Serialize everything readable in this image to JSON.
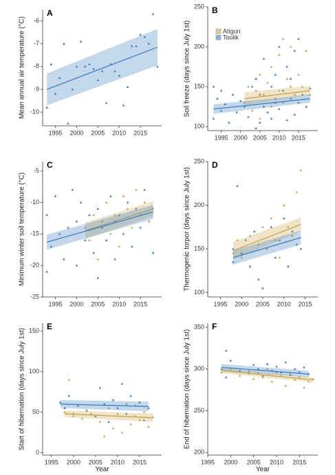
{
  "chart_data": [
    {
      "type": "scatter",
      "title": "A",
      "y_label": "Mean annual air temperature (°C)",
      "xlim": [
        1992,
        2020
      ],
      "xticks": [
        1995,
        2000,
        2005,
        2010,
        2015
      ],
      "ylim": [
        -10.6,
        -5.5
      ],
      "yticks": [
        -10,
        -9,
        -8,
        -7,
        -6
      ],
      "series": [
        {
          "color": "#3a7fc1",
          "x": [
            1993,
            1994,
            1995,
            1996,
            1997,
            1998,
            1999,
            2000,
            2001,
            2002,
            2003,
            2004,
            2005,
            2006,
            2007,
            2008,
            2009,
            2010,
            2011,
            2012,
            2013,
            2014,
            2015,
            2016,
            2017,
            2018,
            2019
          ],
          "values": [
            -9.8,
            -7.9,
            -9.2,
            -8.5,
            -7.0,
            -10.5,
            -9.0,
            -8.0,
            -6.9,
            -8.0,
            -7.9,
            -8.1,
            -8.6,
            -8.2,
            -9.6,
            -7.9,
            -8.2,
            -8.4,
            -9.7,
            -8.9,
            -7.1,
            -7.1,
            -6.6,
            -6.7,
            -7.0,
            -5.7,
            -8.0
          ]
        }
      ],
      "fits": [
        {
          "color": "#3a7fc1",
          "x": [
            1993,
            2019
          ],
          "values": [
            -9.0,
            -7.15
          ],
          "lower": [
            -9.7,
            -7.95
          ],
          "upper": [
            -8.3,
            -6.35
          ]
        }
      ]
    },
    {
      "type": "scatter",
      "title": "B",
      "y_label": "Soil freeze (days since July 1st)",
      "legend": "upper left",
      "xlim": [
        1991.5,
        2020
      ],
      "xticks": [
        1995,
        2000,
        2005,
        2010,
        2015
      ],
      "ylim": [
        95,
        250
      ],
      "yticks": [
        100,
        150,
        200,
        250
      ],
      "series": [
        {
          "name": "Atigun",
          "color": "#c9a44a",
          "x": [
            2001,
            2002,
            2003,
            2004,
            2005,
            2005,
            2006,
            2007,
            2008,
            2008,
            2009,
            2010,
            2010,
            2011,
            2011,
            2012,
            2013,
            2013,
            2014,
            2015,
            2016,
            2017,
            2018
          ],
          "values": [
            130,
            150,
            120,
            145,
            110,
            165,
            140,
            155,
            125,
            175,
            135,
            190,
            145,
            210,
            130,
            160,
            150,
            200,
            140,
            165,
            150,
            195,
            140
          ]
        },
        {
          "name": "Toolik",
          "color": "#3a7fc1",
          "x": [
            1993,
            1993,
            1994,
            1995,
            1995,
            1996,
            1997,
            1998,
            1999,
            2000,
            2001,
            2002,
            2003,
            2004,
            2004,
            2005,
            2005,
            2006,
            2006,
            2007,
            2008,
            2008,
            2009,
            2009,
            2010,
            2010,
            2011,
            2012,
            2012,
            2013,
            2013,
            2014,
            2014,
            2015,
            2015,
            2016,
            2017,
            2018
          ],
          "values": [
            150,
            110,
            135,
            120,
            145,
            128,
            105,
            140,
            118,
            132,
            125,
            112,
            150,
            98,
            160,
            105,
            140,
            185,
            125,
            118,
            150,
            110,
            165,
            130,
            200,
            122,
            145,
            108,
            175,
            135,
            160,
            115,
            195,
            130,
            210,
            140,
            125,
            148
          ]
        }
      ],
      "fits": [
        {
          "color": "#c9a44a",
          "x": [
            2001,
            2018
          ],
          "values": [
            135,
            145
          ],
          "lower": [
            127,
            139
          ],
          "upper": [
            143,
            151
          ]
        },
        {
          "color": "#3a7fc1",
          "x": [
            1993,
            2018
          ],
          "values": [
            122,
            135
          ],
          "lower": [
            116,
            130
          ],
          "upper": [
            128,
            140
          ]
        }
      ]
    },
    {
      "type": "scatter",
      "title": "C",
      "y_label": "Minimum winter soil temperature (°C)",
      "xlim": [
        1992,
        2020
      ],
      "xticks": [
        1995,
        2000,
        2005,
        2010,
        2015
      ],
      "ylim": [
        -25,
        -3.5
      ],
      "yticks": [
        -25,
        -20,
        -15,
        -10,
        -5
      ],
      "series": [
        {
          "color": "#3a7fc1",
          "x": [
            1993,
            1993,
            1994,
            1995,
            1996,
            1997,
            1998,
            1999,
            2000,
            2000,
            2001,
            2002,
            2003,
            2004,
            2005,
            2005,
            2006,
            2007,
            2008,
            2009,
            2009,
            2010,
            2011,
            2012,
            2013,
            2014,
            2015,
            2016,
            2017,
            2018
          ],
          "values": [
            -12,
            -21,
            -17,
            -9,
            -15,
            -19,
            -14,
            -8,
            -13,
            -20,
            -10,
            -16,
            -12,
            -18,
            -22,
            -11,
            -14,
            -16,
            -9,
            -13,
            -19,
            -12,
            -15,
            -10,
            -17,
            -11,
            -14,
            -8,
            -13,
            -18
          ]
        },
        {
          "color": "#c9a44a",
          "x": [
            2002,
            2003,
            2004,
            2005,
            2006,
            2007,
            2008,
            2009,
            2010,
            2011,
            2012,
            2013,
            2014,
            2015,
            2016,
            2017,
            2018
          ],
          "values": [
            -14,
            -16,
            -12,
            -19,
            -13,
            -10,
            -15,
            -12,
            -17,
            -9,
            -11,
            -14,
            -8,
            -12,
            -10,
            -13,
            -11
          ]
        }
      ],
      "fits": [
        {
          "color": "#c9a44a",
          "x": [
            2002,
            2018
          ],
          "values": [
            -14.5,
            -11.0
          ],
          "lower": [
            -15.8,
            -12.2
          ],
          "upper": [
            -13.2,
            -9.8
          ]
        },
        {
          "color": "#3a7fc1",
          "x": [
            1993,
            2018
          ],
          "values": [
            -16.3,
            -11.5
          ],
          "lower": [
            -17.5,
            -12.6
          ],
          "upper": [
            -15.1,
            -10.4
          ]
        }
      ]
    },
    {
      "type": "scatter",
      "title": "D",
      "y_label": "Thermogenic torpor (days since July 1st)",
      "xlim": [
        1992,
        2018
      ],
      "xticks": [
        1995,
        2000,
        2005,
        2010,
        2015
      ],
      "ylim": [
        95,
        250
      ],
      "yticks": [
        100,
        150,
        200,
        250
      ],
      "series": [
        {
          "color": "#3a7fc1",
          "x": [
            1998,
            1998,
            1999,
            2000,
            2001,
            2002,
            2003,
            2004,
            2005,
            2006,
            2007,
            2008,
            2009,
            2010,
            2011,
            2012,
            2013,
            2014
          ],
          "values": [
            135,
            150,
            222,
            145,
            160,
            130,
            170,
            115,
            105,
            150,
            175,
            140,
            160,
            185,
            130,
            170,
            155,
            150
          ]
        },
        {
          "color": "#c9a44a",
          "x": [
            1998,
            1999,
            2000,
            2002,
            2004,
            2005,
            2006,
            2007,
            2008,
            2009,
            2010,
            2011,
            2012,
            2013,
            2014
          ],
          "values": [
            145,
            160,
            140,
            165,
            155,
            175,
            150,
            185,
            160,
            140,
            200,
            175,
            165,
            215,
            240
          ]
        }
      ],
      "fits": [
        {
          "color": "#c9a44a",
          "x": [
            1998,
            2014
          ],
          "values": [
            148,
            178
          ],
          "lower": [
            138,
            170
          ],
          "upper": [
            158,
            186
          ]
        },
        {
          "color": "#3a7fc1",
          "x": [
            1998,
            2014
          ],
          "values": [
            140,
            163
          ],
          "lower": [
            132,
            155
          ],
          "upper": [
            148,
            171
          ]
        }
      ]
    },
    {
      "type": "scatter",
      "title": "E",
      "y_label": "Start of hibernation (days since July 1st)",
      "x_label": "Year",
      "xlim": [
        1993,
        2020
      ],
      "xticks": [
        1995,
        2000,
        2005,
        2010,
        2015
      ],
      "ylim": [
        -3,
        160
      ],
      "yticks": [
        0,
        50,
        100,
        150
      ],
      "series": [
        {
          "color": "#3a7fc1",
          "x": [
            1997,
            1998,
            1999,
            2000,
            2001,
            2003,
            2005,
            2006,
            2007,
            2008,
            2009,
            2010,
            2011,
            2012,
            2013,
            2014,
            2015,
            2016,
            2017
          ],
          "values": [
            62,
            55,
            70,
            48,
            58,
            52,
            45,
            80,
            60,
            38,
            65,
            55,
            85,
            48,
            70,
            58,
            62,
            40,
            55
          ]
        },
        {
          "color": "#c9a44a",
          "x": [
            1998,
            1999,
            2000,
            2002,
            2004,
            2006,
            2007,
            2008,
            2009,
            2010,
            2011,
            2012,
            2013,
            2014,
            2015,
            2016,
            2017,
            2018
          ],
          "values": [
            50,
            90,
            45,
            42,
            48,
            38,
            20,
            55,
            30,
            48,
            25,
            60,
            35,
            45,
            40,
            50,
            32,
            44
          ]
        }
      ],
      "fits": [
        {
          "color": "#3a7fc1",
          "x": [
            1997,
            2017
          ],
          "values": [
            60,
            57
          ],
          "lower": [
            55,
            51
          ],
          "upper": [
            65,
            63
          ]
        },
        {
          "color": "#c9a44a",
          "x": [
            1998,
            2018
          ],
          "values": [
            48,
            43
          ],
          "lower": [
            44,
            38
          ],
          "upper": [
            52,
            48
          ]
        }
      ]
    },
    {
      "type": "scatter",
      "title": "F",
      "y_label": "End of hibernation (days since July 1st)",
      "x_label": "Year",
      "xlim": [
        1995,
        2019
      ],
      "xticks": [
        1995,
        2000,
        2005,
        2010,
        2015
      ],
      "ylim": [
        197,
        355
      ],
      "yticks": [
        200,
        250,
        300,
        350
      ],
      "series": [
        {
          "color": "#3a7fc1",
          "x": [
            1998,
            1999,
            1999,
            2000,
            2002,
            2004,
            2005,
            2006,
            2007,
            2008,
            2009,
            2010,
            2011,
            2012,
            2013,
            2014,
            2015,
            2016,
            2017
          ],
          "values": [
            300,
            322,
            290,
            310,
            298,
            295,
            305,
            300,
            292,
            306,
            298,
            303,
            296,
            308,
            293,
            300,
            296,
            302,
            294
          ]
        },
        {
          "color": "#c9a44a",
          "x": [
            1998,
            2000,
            2002,
            2004,
            2005,
            2006,
            2007,
            2008,
            2009,
            2010,
            2011,
            2012,
            2013,
            2014,
            2015,
            2016,
            2017,
            2018
          ],
          "values": [
            296,
            300,
            292,
            298,
            288,
            295,
            290,
            300,
            285,
            296,
            292,
            280,
            294,
            287,
            290,
            278,
            285,
            288
          ]
        }
      ],
      "fits": [
        {
          "color": "#c9a44a",
          "x": [
            1998,
            2018
          ],
          "values": [
            298,
            287
          ],
          "lower": [
            295,
            284
          ],
          "upper": [
            301,
            290
          ]
        },
        {
          "color": "#3a7fc1",
          "x": [
            1998,
            2017
          ],
          "values": [
            302,
            294
          ],
          "lower": [
            298,
            290
          ],
          "upper": [
            306,
            298
          ]
        }
      ]
    }
  ]
}
